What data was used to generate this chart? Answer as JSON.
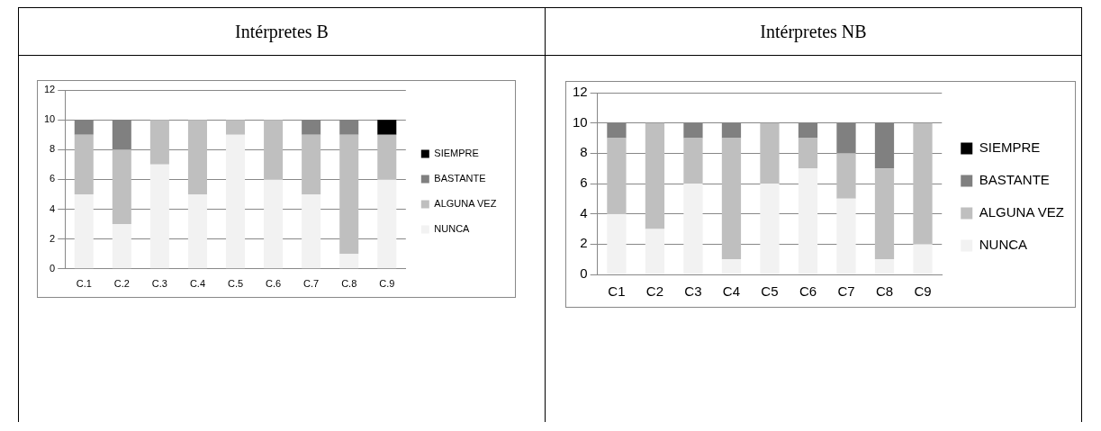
{
  "chart_data": [
    {
      "type": "bar",
      "title": "Intérpretes B",
      "stacked": true,
      "categories": [
        "C.1",
        "C.2",
        "C.3",
        "C.4",
        "C.5",
        "C.6",
        "C.7",
        "C.8",
        "C.9"
      ],
      "ylim": [
        0,
        12
      ],
      "yticks": [
        0,
        2,
        4,
        6,
        8,
        10,
        12
      ],
      "grid": "y",
      "legend": "right",
      "series": [
        {
          "name": "NUNCA",
          "color": "#f2f2f2",
          "values": [
            5,
            3,
            7,
            5,
            9,
            6,
            5,
            1,
            6
          ]
        },
        {
          "name": "ALGUNA VEZ",
          "color": "#bfbfbf",
          "values": [
            4,
            5,
            3,
            5,
            1,
            4,
            4,
            8,
            3
          ]
        },
        {
          "name": "BASTANTE",
          "color": "#808080",
          "values": [
            1,
            2,
            0,
            0,
            0,
            0,
            1,
            1,
            0
          ]
        },
        {
          "name": "SIEMPRE",
          "color": "#000000",
          "values": [
            0,
            0,
            0,
            0,
            0,
            0,
            0,
            0,
            1
          ]
        }
      ]
    },
    {
      "type": "bar",
      "title": "Intérpretes NB",
      "stacked": true,
      "categories": [
        "C1",
        "C2",
        "C3",
        "C4",
        "C5",
        "C6",
        "C7",
        "C8",
        "C9"
      ],
      "ylim": [
        0,
        12
      ],
      "yticks": [
        0,
        2,
        4,
        6,
        8,
        10,
        12
      ],
      "grid": "y",
      "legend": "right",
      "series": [
        {
          "name": "NUNCA",
          "color": "#f2f2f2",
          "values": [
            4,
            3,
            6,
            1,
            6,
            7,
            5,
            1,
            2
          ]
        },
        {
          "name": "ALGUNA VEZ",
          "color": "#bfbfbf",
          "values": [
            5,
            7,
            3,
            8,
            4,
            2,
            3,
            6,
            8
          ]
        },
        {
          "name": "BASTANTE",
          "color": "#808080",
          "values": [
            1,
            0,
            1,
            1,
            0,
            1,
            2,
            3,
            0
          ]
        },
        {
          "name": "SIEMPRE",
          "color": "#000000",
          "values": [
            0,
            0,
            0,
            0,
            0,
            0,
            0,
            0,
            0
          ]
        }
      ]
    }
  ]
}
